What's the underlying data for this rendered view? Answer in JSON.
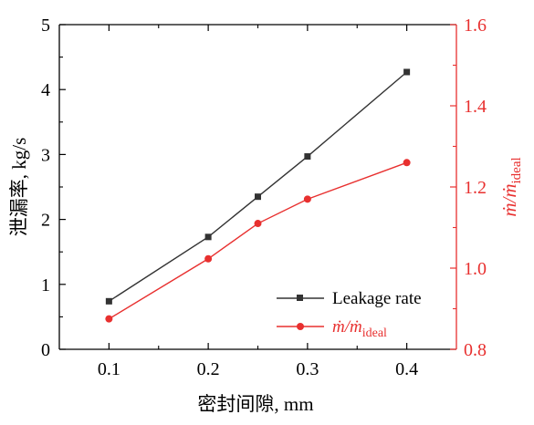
{
  "chart_data": {
    "type": "line",
    "x": [
      0.1,
      0.2,
      0.25,
      0.3,
      0.4
    ],
    "xlim": [
      0.05,
      0.45
    ],
    "xticks": [
      "0.1",
      "0.2",
      "0.3",
      "0.4"
    ],
    "xlabel": "密封间隙, mm",
    "y_left": {
      "label": "泄漏率, kg/s",
      "lim": [
        0,
        5
      ],
      "ticks": [
        "0",
        "1",
        "2",
        "3",
        "4",
        "5"
      ],
      "color": "#000000"
    },
    "y_right": {
      "label_main": "ṁ/ṁ",
      "label_sub": "ideal",
      "lim": [
        0.8,
        1.6
      ],
      "ticks": [
        "0.8",
        "1.0",
        "1.2",
        "1.4",
        "1.6"
      ],
      "color": "#e8302f"
    },
    "series": [
      {
        "name": "Leakage rate",
        "axis": "left",
        "marker": "square",
        "color": "#333333",
        "values": [
          0.74,
          1.73,
          2.35,
          2.97,
          4.27
        ]
      },
      {
        "name_main": "ṁ/ṁ",
        "name_sub": "ideal",
        "axis": "right",
        "marker": "circle",
        "color": "#e8302f",
        "values": [
          0.875,
          1.023,
          1.11,
          1.17,
          1.26
        ]
      }
    ],
    "legend_position": "bottom-right",
    "grid": false
  }
}
